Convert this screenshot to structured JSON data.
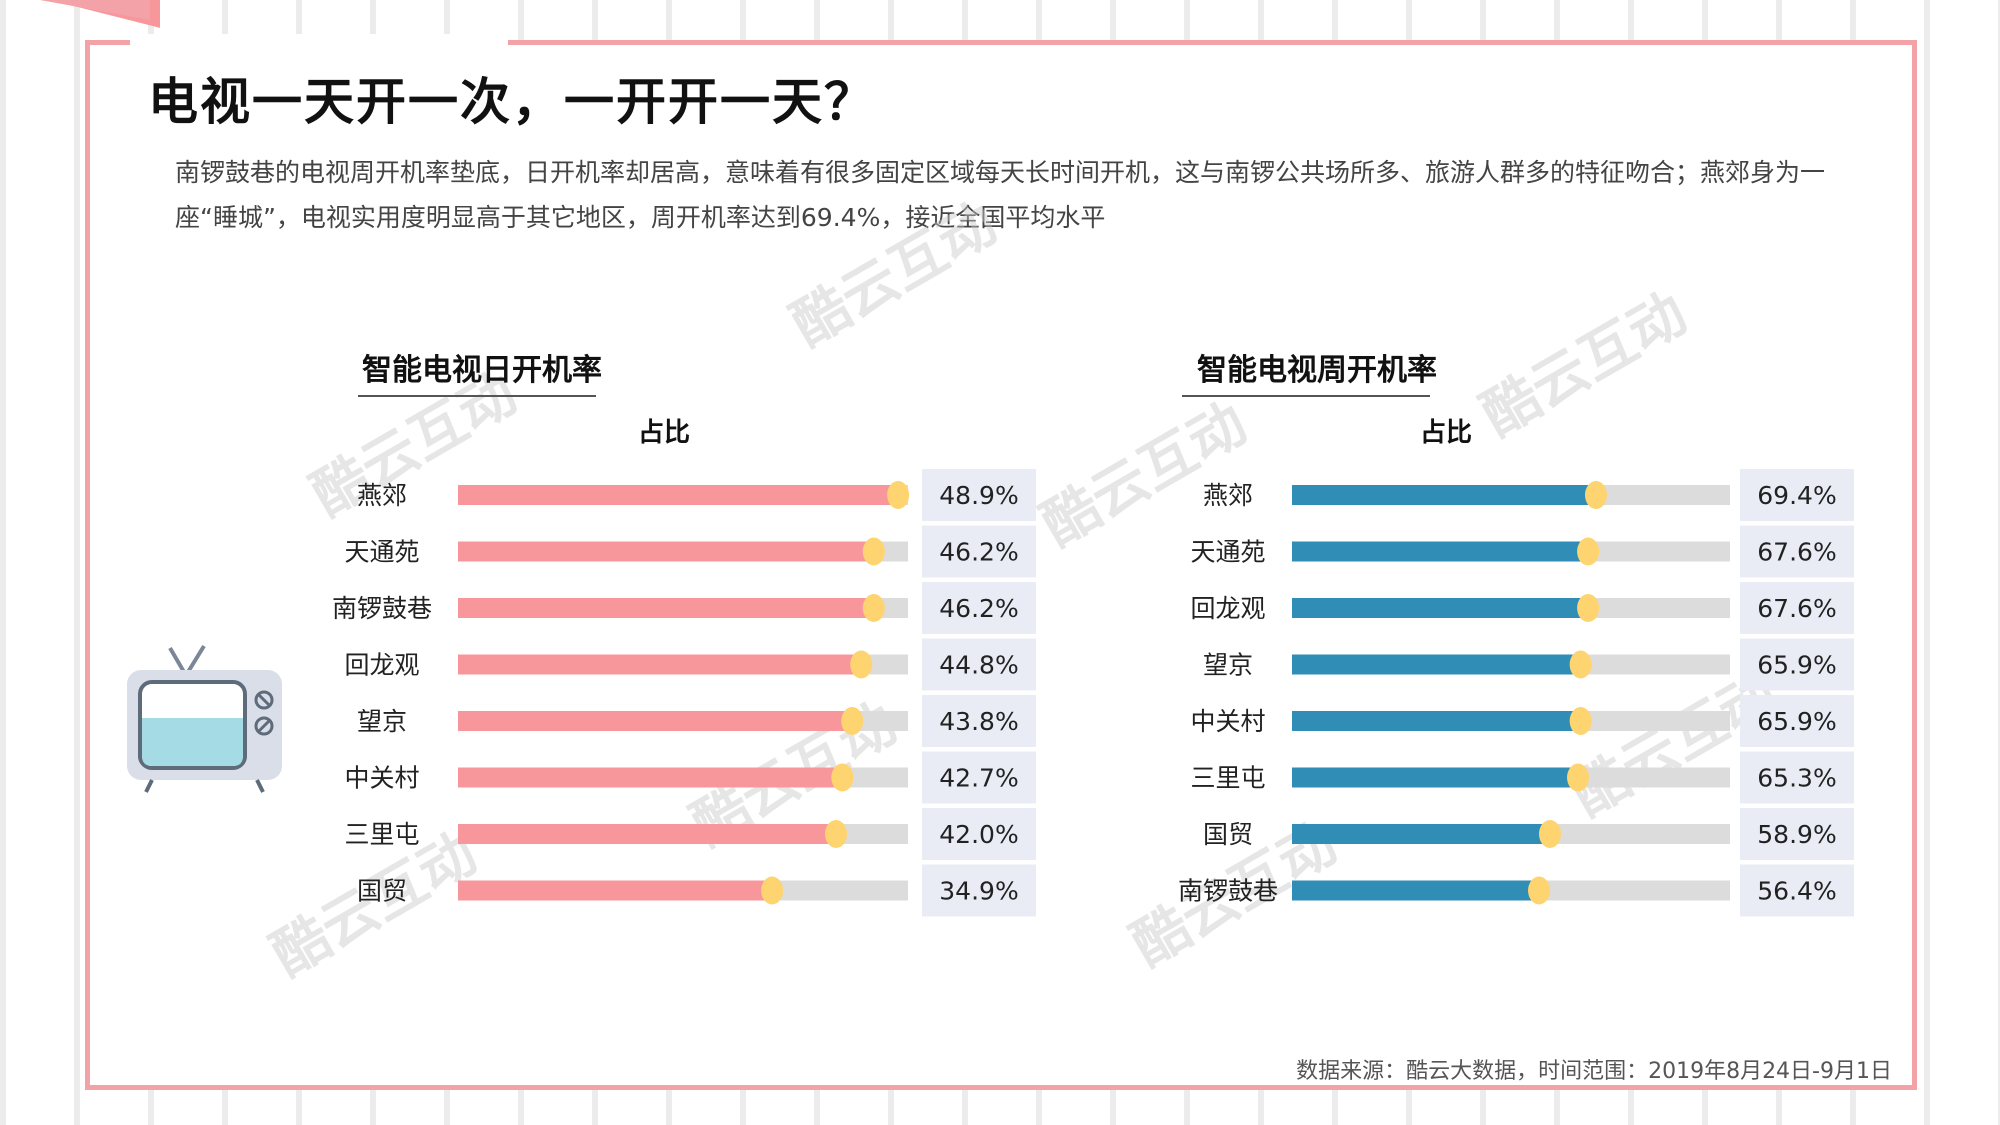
{
  "title": "电视一天开一次，一开开一天？",
  "description": "南锣鼓巷的电视周开机率垫底，日开机率却居高，意味着有很多固定区域每天长时间开机，这与南锣公共场所多、旅游人群多的特征吻合；燕郊身为一座“睡城”，电视实用度明显高于其它地区，周开机率达到69.4%，接近全国平均水平",
  "watermark": "酷云互动",
  "source": "数据来源：酷云大数据，时间范围：2019年8月24日-9月1日",
  "colors": {
    "frame": "#f3a2a8",
    "daily_bar": "#f7979b",
    "weekly_bar": "#2f8db6",
    "track": "#dcdcdc",
    "marker": "#fdd46f",
    "label_bg": "#e9ecf5"
  },
  "icons": [
    "tv-icon"
  ],
  "chart_data": [
    {
      "type": "bar",
      "title": "智能电视日开机率",
      "subtitle": "占比",
      "categories": [
        "燕郊",
        "天通苑",
        "南锣鼓巷",
        "回龙观",
        "望京",
        "中关村",
        "三里屯",
        "国贸"
      ],
      "values": [
        48.9,
        46.2,
        46.2,
        44.8,
        43.8,
        42.7,
        42.0,
        34.9
      ],
      "labels": [
        "48.9%",
        "46.2%",
        "46.2%",
        "44.8%",
        "43.8%",
        "42.7%",
        "42.0%",
        "34.9%"
      ],
      "xlim": [
        0,
        50
      ],
      "grid": false
    },
    {
      "type": "bar",
      "title": "智能电视周开机率",
      "subtitle": "占比",
      "categories": [
        "燕郊",
        "天通苑",
        "回龙观",
        "望京",
        "中关村",
        "三里屯",
        "国贸",
        "南锣鼓巷"
      ],
      "values": [
        69.4,
        67.6,
        67.6,
        65.9,
        65.9,
        65.3,
        58.9,
        56.4
      ],
      "labels": [
        "69.4%",
        "67.6%",
        "67.6%",
        "65.9%",
        "65.9%",
        "65.3%",
        "58.9%",
        "56.4%"
      ],
      "xlim": [
        0,
        100
      ],
      "grid": false
    }
  ]
}
